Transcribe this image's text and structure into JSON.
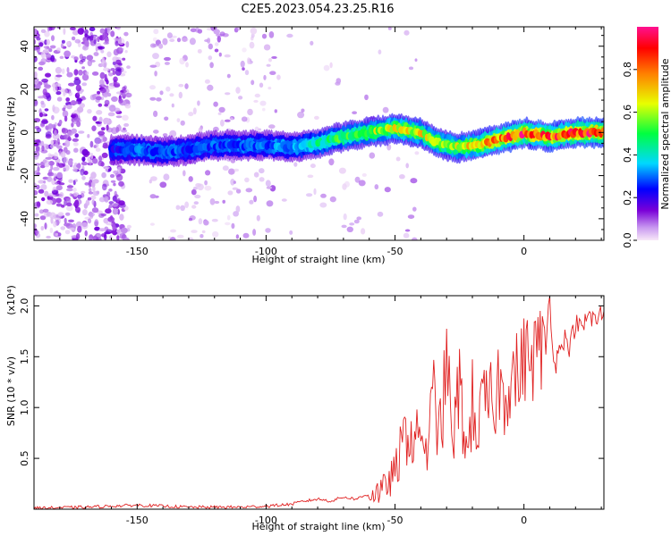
{
  "title": "C2E5.2023.054.23.25.R16",
  "chart_data": [
    {
      "type": "heatmap",
      "xlabel": "Height of straight line (km)",
      "ylabel": "Frequency (Hz)",
      "xlim": [
        -190,
        31
      ],
      "ylim": [
        -50,
        49
      ],
      "xticks": [
        -150,
        -100,
        -50,
        0
      ],
      "yticks": [
        -40,
        -20,
        0,
        20,
        40
      ],
      "grid": false,
      "colorbar": {
        "label": "Normalized spectral amplitude",
        "range": [
          0,
          1
        ],
        "ticks": [
          "0.0",
          "0.2",
          "0.4",
          "0.6",
          "0.8"
        ],
        "colors": [
          "#f8e8f8",
          "#7a00d8",
          "#0000ff",
          "#00d8ff",
          "#00ff40",
          "#e8ff00",
          "#ff8000",
          "#ff0000",
          "#ff1090"
        ]
      },
      "ridge": {
        "x": [
          -160,
          -150,
          -140,
          -130,
          -120,
          -110,
          -100,
          -90,
          -80,
          -70,
          -60,
          -50,
          -45,
          -40,
          -35,
          -30,
          -25,
          -20,
          -15,
          -10,
          -5,
          0,
          5,
          10,
          15,
          20,
          25,
          30
        ],
        "freq": [
          -8,
          -8,
          -9,
          -8,
          -6,
          -6,
          -6,
          -7,
          -5,
          -2,
          0,
          2,
          1,
          0,
          -4,
          -6,
          -7,
          -6,
          -5,
          -3,
          -2,
          0,
          -1,
          -2,
          -1,
          0,
          0,
          0
        ],
        "amplitude": [
          0.25,
          0.3,
          0.3,
          0.28,
          0.3,
          0.3,
          0.3,
          0.35,
          0.45,
          0.55,
          0.62,
          0.7,
          0.72,
          0.7,
          0.65,
          0.62,
          0.65,
          0.72,
          0.8,
          0.85,
          0.9,
          0.92,
          0.9,
          0.88,
          0.9,
          0.92,
          0.95,
          0.95
        ]
      }
    },
    {
      "type": "line",
      "xlabel": "Height of straight line (km)",
      "ylabel": "SNR (10 * v/v)",
      "y_multiplier": "(x10⁴)",
      "xlim": [
        -190,
        31
      ],
      "ylim": [
        0,
        2.1
      ],
      "xticks": [
        -150,
        -100,
        -50,
        0
      ],
      "yticks": [
        "0.5",
        "1.0",
        "1.5",
        "2.0"
      ],
      "grid": false,
      "series": [
        {
          "color": "#e02020",
          "x": [
            -190,
            -170,
            -150,
            -130,
            -110,
            -100,
            -90,
            -85,
            -80,
            -75,
            -70,
            -65,
            -60,
            -55,
            -50,
            -48,
            -45,
            -42,
            -40,
            -38,
            -35,
            -32,
            -30,
            -28,
            -25,
            -22,
            -20,
            -18,
            -15,
            -12,
            -10,
            -8,
            -5,
            -2,
            0,
            3,
            5,
            8,
            10,
            12,
            15,
            18,
            20,
            22,
            25,
            28,
            31
          ],
          "y": [
            0.01,
            0.02,
            0.04,
            0.02,
            0.02,
            0.03,
            0.05,
            0.08,
            0.1,
            0.08,
            0.12,
            0.1,
            0.15,
            0.18,
            0.35,
            0.55,
            0.8,
            0.6,
            0.9,
            0.5,
            1.1,
            0.7,
            1.6,
            0.6,
            1.2,
            0.5,
            1.05,
            0.8,
            1.05,
            1.0,
            1.25,
            1.1,
            1.35,
            1.3,
            1.5,
            1.45,
            1.6,
            1.55,
            2.05,
            1.4,
            1.7,
            1.6,
            1.85,
            1.75,
            1.9,
            1.85,
            1.95
          ]
        }
      ]
    }
  ]
}
